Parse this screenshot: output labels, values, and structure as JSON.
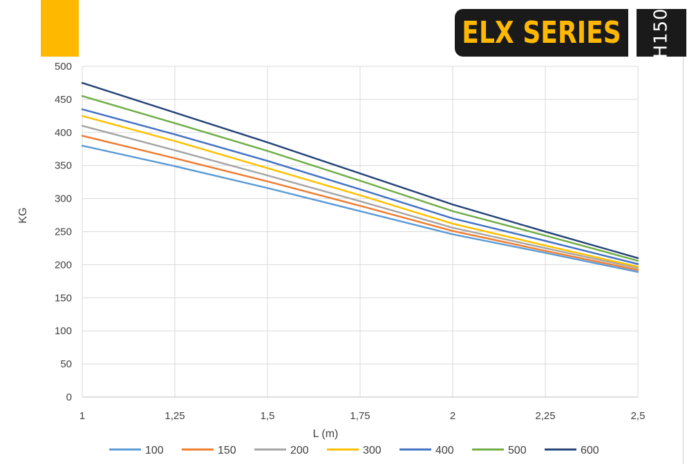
{
  "header": {
    "brand": "ELX SERIES",
    "model": "H150",
    "accent_color": "#FFB800",
    "dark_color": "#1A1A1A"
  },
  "chart_data": {
    "type": "line",
    "title": "",
    "xlabel": "L (m)",
    "ylabel": "KG",
    "x": [
      1,
      1.25,
      1.5,
      1.75,
      2,
      2.25,
      2.5
    ],
    "x_tick_labels": [
      "1",
      "1,25",
      "1,5",
      "1,75",
      "2",
      "2,25",
      "2,5"
    ],
    "xlim": [
      1,
      2.5
    ],
    "ylim": [
      0,
      500
    ],
    "y_ticks": [
      0,
      50,
      100,
      150,
      200,
      250,
      300,
      350,
      400,
      450,
      500
    ],
    "grid": true,
    "legend_position": "bottom",
    "series": [
      {
        "name": "100",
        "color": "#5B9BD5",
        "values": [
          380,
          349,
          316,
          281,
          246,
          218,
          189
        ]
      },
      {
        "name": "150",
        "color": "#ED7D31",
        "values": [
          395,
          361,
          326,
          289,
          251,
          221,
          192
        ]
      },
      {
        "name": "200",
        "color": "#A5A5A5",
        "values": [
          410,
          373,
          335,
          296,
          256,
          225,
          195
        ]
      },
      {
        "name": "300",
        "color": "#FFC000",
        "values": [
          425,
          387,
          346,
          305,
          262,
          229,
          197
        ]
      },
      {
        "name": "400",
        "color": "#4472C4",
        "values": [
          435,
          397,
          357,
          314,
          270,
          236,
          201
        ]
      },
      {
        "name": "500",
        "color": "#70AD47",
        "values": [
          455,
          414,
          372,
          327,
          281,
          244,
          206
        ]
      },
      {
        "name": "600",
        "color": "#264478",
        "values": [
          475,
          430,
          385,
          338,
          291,
          250,
          210
        ]
      }
    ]
  }
}
